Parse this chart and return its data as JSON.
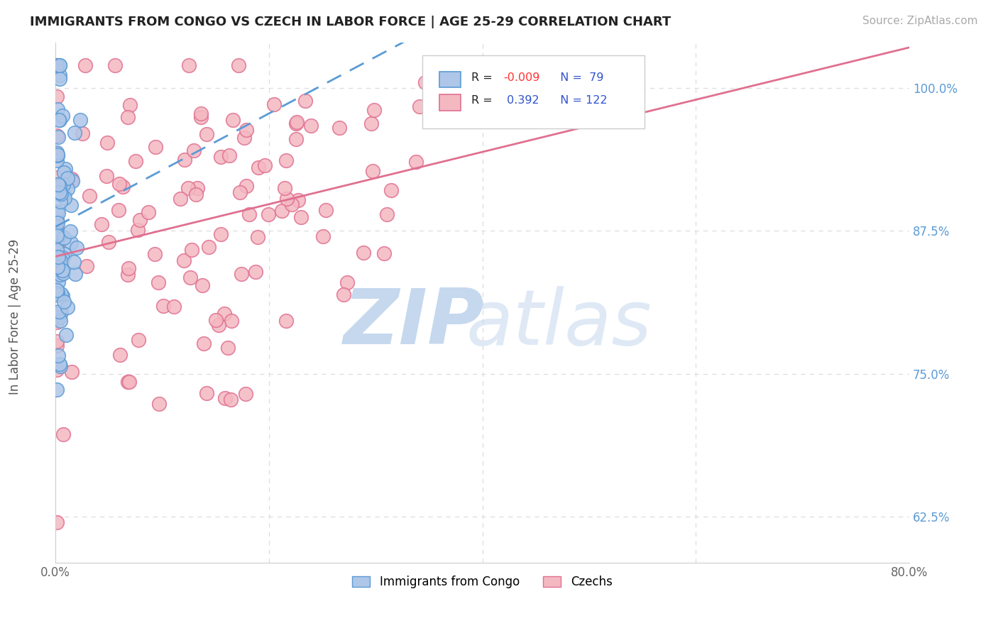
{
  "title": "IMMIGRANTS FROM CONGO VS CZECH IN LABOR FORCE | AGE 25-29 CORRELATION CHART",
  "source_text": "Source: ZipAtlas.com",
  "ylabel": "In Labor Force | Age 25-29",
  "xmin": 0.0,
  "xmax": 0.8,
  "ymin": 0.585,
  "ymax": 1.04,
  "xticks": [
    0.0,
    0.2,
    0.4,
    0.6,
    0.8
  ],
  "xticklabels_bottom": [
    "0.0%",
    "",
    "",
    "",
    "80.0%"
  ],
  "yticks": [
    0.625,
    0.75,
    0.875,
    1.0
  ],
  "yticklabels": [
    "62.5%",
    "75.0%",
    "87.5%",
    "100.0%"
  ],
  "congo_color": "#aec6e8",
  "congo_edge_color": "#5b9bd5",
  "czech_color": "#f4b8c1",
  "czech_edge_color": "#e07090",
  "congo_R": -0.009,
  "congo_N": 79,
  "czech_R": 0.392,
  "czech_N": 122,
  "congo_trend_color": "#5b9bd5",
  "czech_trend_color": "#e07090",
  "watermark_zip_color": "#c5d8ee",
  "watermark_atlas_color": "#c5d8ee",
  "background_color": "#ffffff",
  "grid_color": "#dddddd",
  "grid_linestyle": "--",
  "legend_label_congo": "Immigrants from Congo",
  "legend_label_czech": "Czechs",
  "R_value_color_neg": "#ff3333",
  "R_value_color_pos": "#3355cc",
  "N_label_color": "#3355cc",
  "ytick_color": "#5b9bd5",
  "title_fontsize": 13,
  "source_fontsize": 11
}
